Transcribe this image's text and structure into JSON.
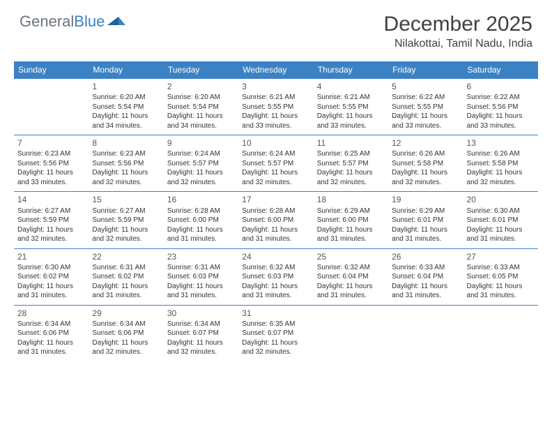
{
  "brand": {
    "part1": "General",
    "part2": "Blue"
  },
  "title": "December 2025",
  "location": "Nilakottai, Tamil Nadu, India",
  "colors": {
    "header_bg": "#3b82c4",
    "header_text": "#ffffff",
    "shaded_bg": "#f0f0f0",
    "border": "#3b82c4",
    "text": "#333333",
    "logo_gray": "#6b7280",
    "logo_blue": "#3b82c4"
  },
  "weekdays": [
    "Sunday",
    "Monday",
    "Tuesday",
    "Wednesday",
    "Thursday",
    "Friday",
    "Saturday"
  ],
  "weeks": [
    [
      {
        "day": "",
        "shaded": true,
        "lines": []
      },
      {
        "day": "1",
        "shaded": true,
        "lines": [
          "Sunrise: 6:20 AM",
          "Sunset: 5:54 PM",
          "Daylight: 11 hours and 34 minutes."
        ]
      },
      {
        "day": "2",
        "shaded": false,
        "lines": [
          "Sunrise: 6:20 AM",
          "Sunset: 5:54 PM",
          "Daylight: 11 hours and 34 minutes."
        ]
      },
      {
        "day": "3",
        "shaded": false,
        "lines": [
          "Sunrise: 6:21 AM",
          "Sunset: 5:55 PM",
          "Daylight: 11 hours and 33 minutes."
        ]
      },
      {
        "day": "4",
        "shaded": true,
        "lines": [
          "Sunrise: 6:21 AM",
          "Sunset: 5:55 PM",
          "Daylight: 11 hours and 33 minutes."
        ]
      },
      {
        "day": "5",
        "shaded": false,
        "lines": [
          "Sunrise: 6:22 AM",
          "Sunset: 5:55 PM",
          "Daylight: 11 hours and 33 minutes."
        ]
      },
      {
        "day": "6",
        "shaded": true,
        "lines": [
          "Sunrise: 6:22 AM",
          "Sunset: 5:56 PM",
          "Daylight: 11 hours and 33 minutes."
        ]
      }
    ],
    [
      {
        "day": "7",
        "shaded": false,
        "lines": [
          "Sunrise: 6:23 AM",
          "Sunset: 5:56 PM",
          "Daylight: 11 hours and 33 minutes."
        ]
      },
      {
        "day": "8",
        "shaded": true,
        "lines": [
          "Sunrise: 6:23 AM",
          "Sunset: 5:56 PM",
          "Daylight: 11 hours and 32 minutes."
        ]
      },
      {
        "day": "9",
        "shaded": false,
        "lines": [
          "Sunrise: 6:24 AM",
          "Sunset: 5:57 PM",
          "Daylight: 11 hours and 32 minutes."
        ]
      },
      {
        "day": "10",
        "shaded": false,
        "lines": [
          "Sunrise: 6:24 AM",
          "Sunset: 5:57 PM",
          "Daylight: 11 hours and 32 minutes."
        ]
      },
      {
        "day": "11",
        "shaded": true,
        "lines": [
          "Sunrise: 6:25 AM",
          "Sunset: 5:57 PM",
          "Daylight: 11 hours and 32 minutes."
        ]
      },
      {
        "day": "12",
        "shaded": false,
        "lines": [
          "Sunrise: 6:26 AM",
          "Sunset: 5:58 PM",
          "Daylight: 11 hours and 32 minutes."
        ]
      },
      {
        "day": "13",
        "shaded": true,
        "lines": [
          "Sunrise: 6:26 AM",
          "Sunset: 5:58 PM",
          "Daylight: 11 hours and 32 minutes."
        ]
      }
    ],
    [
      {
        "day": "14",
        "shaded": true,
        "lines": [
          "Sunrise: 6:27 AM",
          "Sunset: 5:59 PM",
          "Daylight: 11 hours and 32 minutes."
        ]
      },
      {
        "day": "15",
        "shaded": true,
        "lines": [
          "Sunrise: 6:27 AM",
          "Sunset: 5:59 PM",
          "Daylight: 11 hours and 32 minutes."
        ]
      },
      {
        "day": "16",
        "shaded": false,
        "lines": [
          "Sunrise: 6:28 AM",
          "Sunset: 6:00 PM",
          "Daylight: 11 hours and 31 minutes."
        ]
      },
      {
        "day": "17",
        "shaded": false,
        "lines": [
          "Sunrise: 6:28 AM",
          "Sunset: 6:00 PM",
          "Daylight: 11 hours and 31 minutes."
        ]
      },
      {
        "day": "18",
        "shaded": true,
        "lines": [
          "Sunrise: 6:29 AM",
          "Sunset: 6:00 PM",
          "Daylight: 11 hours and 31 minutes."
        ]
      },
      {
        "day": "19",
        "shaded": false,
        "lines": [
          "Sunrise: 6:29 AM",
          "Sunset: 6:01 PM",
          "Daylight: 11 hours and 31 minutes."
        ]
      },
      {
        "day": "20",
        "shaded": true,
        "lines": [
          "Sunrise: 6:30 AM",
          "Sunset: 6:01 PM",
          "Daylight: 11 hours and 31 minutes."
        ]
      }
    ],
    [
      {
        "day": "21",
        "shaded": true,
        "lines": [
          "Sunrise: 6:30 AM",
          "Sunset: 6:02 PM",
          "Daylight: 11 hours and 31 minutes."
        ]
      },
      {
        "day": "22",
        "shaded": true,
        "lines": [
          "Sunrise: 6:31 AM",
          "Sunset: 6:02 PM",
          "Daylight: 11 hours and 31 minutes."
        ]
      },
      {
        "day": "23",
        "shaded": false,
        "lines": [
          "Sunrise: 6:31 AM",
          "Sunset: 6:03 PM",
          "Daylight: 11 hours and 31 minutes."
        ]
      },
      {
        "day": "24",
        "shaded": false,
        "lines": [
          "Sunrise: 6:32 AM",
          "Sunset: 6:03 PM",
          "Daylight: 11 hours and 31 minutes."
        ]
      },
      {
        "day": "25",
        "shaded": true,
        "lines": [
          "Sunrise: 6:32 AM",
          "Sunset: 6:04 PM",
          "Daylight: 11 hours and 31 minutes."
        ]
      },
      {
        "day": "26",
        "shaded": false,
        "lines": [
          "Sunrise: 6:33 AM",
          "Sunset: 6:04 PM",
          "Daylight: 11 hours and 31 minutes."
        ]
      },
      {
        "day": "27",
        "shaded": true,
        "lines": [
          "Sunrise: 6:33 AM",
          "Sunset: 6:05 PM",
          "Daylight: 11 hours and 31 minutes."
        ]
      }
    ],
    [
      {
        "day": "28",
        "shaded": true,
        "lines": [
          "Sunrise: 6:34 AM",
          "Sunset: 6:06 PM",
          "Daylight: 11 hours and 31 minutes."
        ]
      },
      {
        "day": "29",
        "shaded": true,
        "lines": [
          "Sunrise: 6:34 AM",
          "Sunset: 6:06 PM",
          "Daylight: 11 hours and 32 minutes."
        ]
      },
      {
        "day": "30",
        "shaded": false,
        "lines": [
          "Sunrise: 6:34 AM",
          "Sunset: 6:07 PM",
          "Daylight: 11 hours and 32 minutes."
        ]
      },
      {
        "day": "31",
        "shaded": false,
        "lines": [
          "Sunrise: 6:35 AM",
          "Sunset: 6:07 PM",
          "Daylight: 11 hours and 32 minutes."
        ]
      },
      {
        "day": "",
        "shaded": false,
        "lines": []
      },
      {
        "day": "",
        "shaded": false,
        "lines": []
      },
      {
        "day": "",
        "shaded": false,
        "lines": []
      }
    ]
  ]
}
